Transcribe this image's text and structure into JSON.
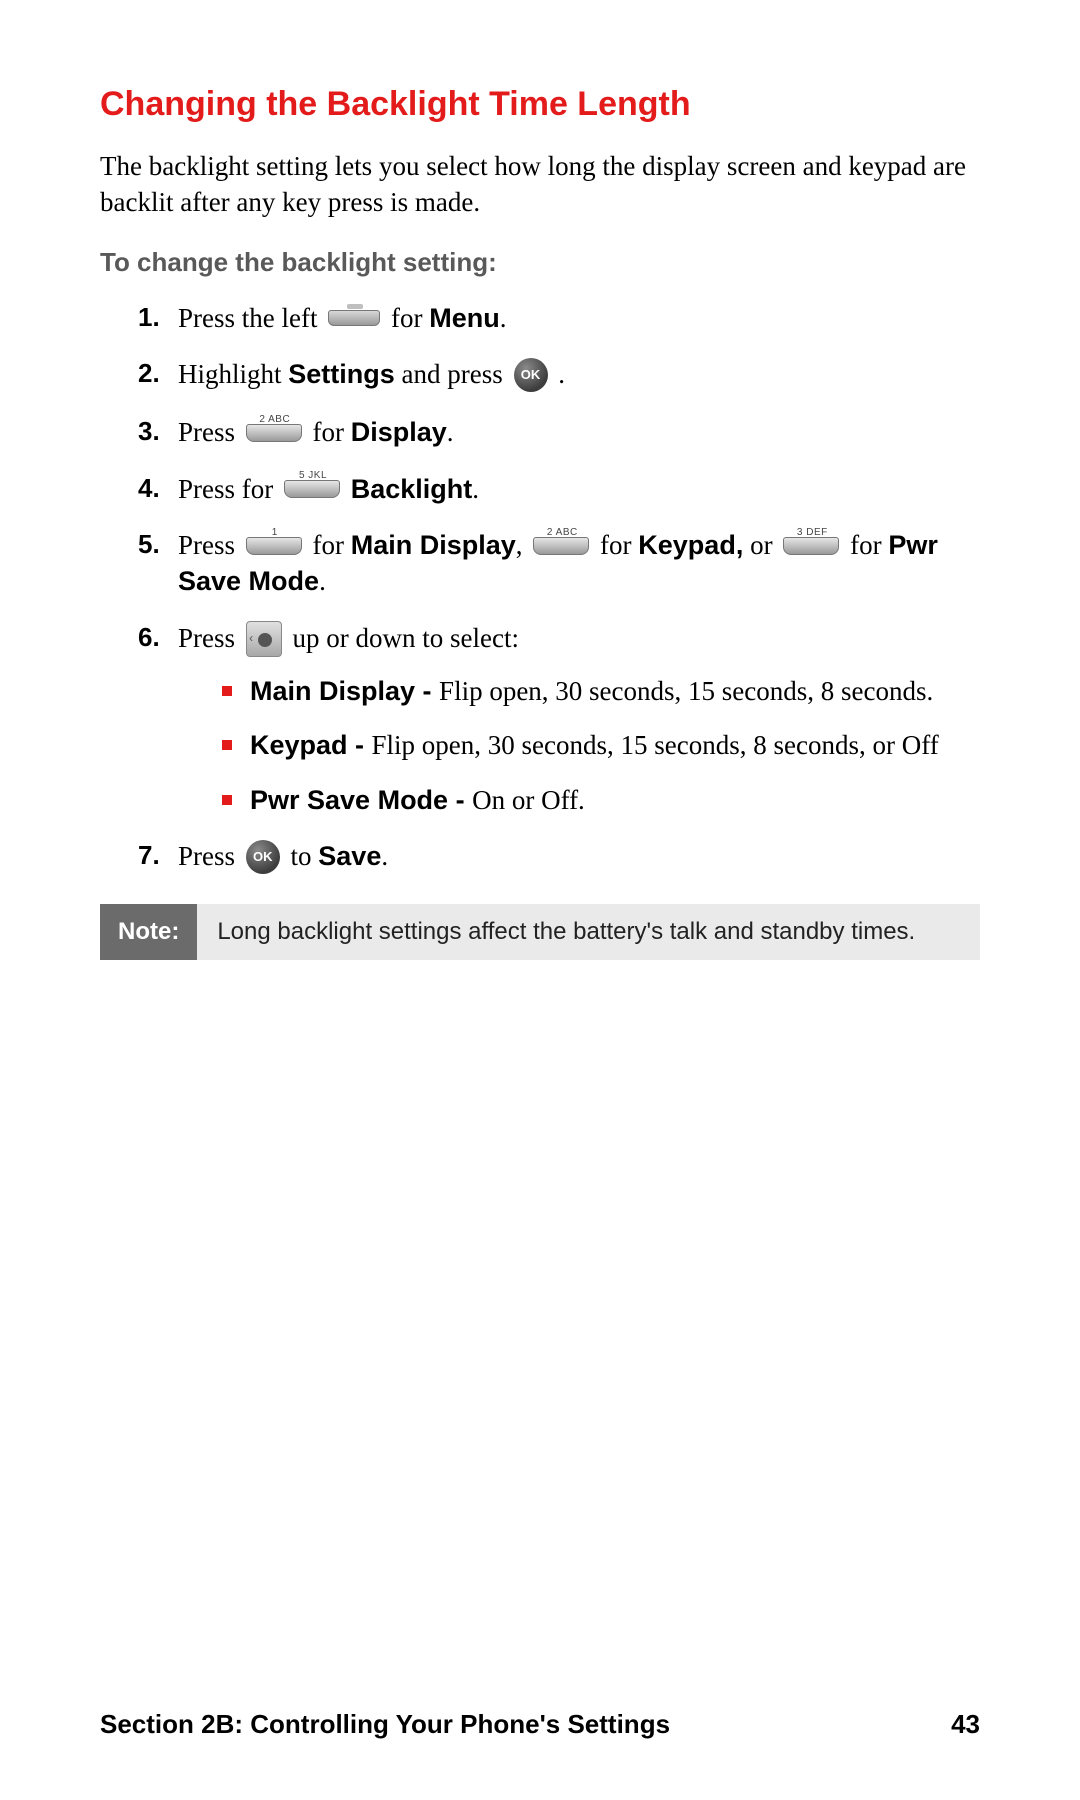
{
  "colors": {
    "accent_red": "#e31b1b",
    "subhead_gray": "#595959",
    "note_label_bg": "#6b6b6b",
    "note_body_bg": "#eaeaea",
    "body_text": "#000000",
    "page_bg": "#ffffff"
  },
  "typography": {
    "title_fontsize": 34,
    "body_fontsize": 27,
    "subhead_fontsize": 26,
    "footer_fontsize": 26,
    "note_fontsize": 24,
    "title_family": "Arial",
    "body_family": "Georgia"
  },
  "title": "Changing the Backlight Time Length",
  "intro": "The backlight setting lets you select how long the display screen and keypad are backlit after any key press is made.",
  "subhead": "To change the backlight setting:",
  "keys": {
    "ok": "OK",
    "k1": "1",
    "k2": "2 ABC",
    "k3": "3 DEF",
    "k5": "5 JKL"
  },
  "steps": {
    "s1_a": "Press the left ",
    "s1_b": " for ",
    "s1_menu": "Menu",
    "s1_c": ".",
    "s2_a": "Highlight ",
    "s2_settings": "Settings",
    "s2_b": " and press ",
    "s2_c": " .",
    "s3_a": "Press ",
    "s3_b": " for ",
    "s3_display": "Display",
    "s3_c": ".",
    "s4_a": "Press for ",
    "s4_b": " ",
    "s4_backlight": "Backlight",
    "s4_c": ".",
    "s5_a": "Press ",
    "s5_b": " for ",
    "s5_main": "Main Display",
    "s5_c": ", ",
    "s5_d": " for ",
    "s5_keypad": "Keypad,",
    "s5_e": " or ",
    "s5_f": " for ",
    "s5_pwr": "Pwr Save Mode",
    "s5_g": ".",
    "s6_a": "Press ",
    "s6_b": " up or down to select:",
    "s7_a": "Press ",
    "s7_b": " to ",
    "s7_save": "Save",
    "s7_c": "."
  },
  "bullets": {
    "b1_label": "Main Display - ",
    "b1_text": "Flip open, 30 seconds, 15 seconds, 8 seconds.",
    "b2_label": "Keypad - ",
    "b2_text": "Flip open, 30 seconds, 15 seconds, 8 seconds, or Off",
    "b3_label": "Pwr Save Mode - ",
    "b3_text": "On or Off."
  },
  "note": {
    "label": "Note:",
    "text": "Long backlight settings affect the battery's talk and standby times."
  },
  "footer": {
    "section": "Section 2B: Controlling Your Phone's Settings",
    "page": "43"
  }
}
